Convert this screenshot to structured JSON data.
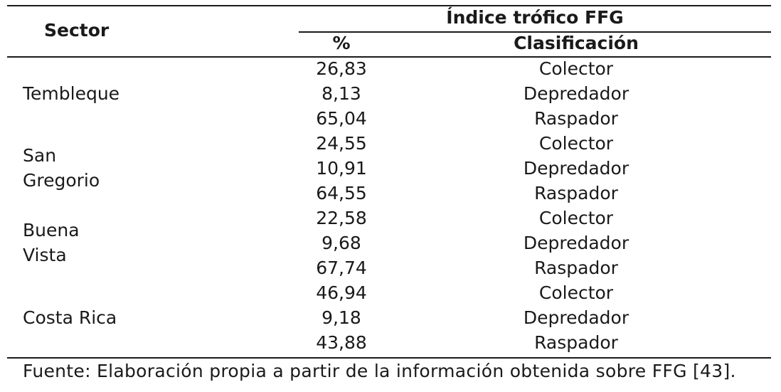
{
  "table": {
    "header": {
      "sector": "Sector",
      "group": "Índice trófico FFG",
      "percent": "%",
      "classification": "Clasificación"
    },
    "sectors": [
      {
        "name_lines": [
          "Tembleque"
        ],
        "rows": [
          {
            "percent": "26,83",
            "classification": "Colector"
          },
          {
            "percent": "8,13",
            "classification": "Depredador"
          },
          {
            "percent": "65,04",
            "classification": "Raspador"
          }
        ]
      },
      {
        "name_lines": [
          "San",
          "Gregorio"
        ],
        "rows": [
          {
            "percent": "24,55",
            "classification": "Colector"
          },
          {
            "percent": "10,91",
            "classification": "Depredador"
          },
          {
            "percent": "64,55",
            "classification": "Raspador"
          }
        ]
      },
      {
        "name_lines": [
          "Buena",
          "Vista"
        ],
        "rows": [
          {
            "percent": "22,58",
            "classification": "Colector"
          },
          {
            "percent": "9,68",
            "classification": "Depredador"
          },
          {
            "percent": "67,74",
            "classification": "Raspador"
          }
        ]
      },
      {
        "name_lines": [
          "Costa Rica"
        ],
        "rows": [
          {
            "percent": "46,94",
            "classification": "Colector"
          },
          {
            "percent": "9,18",
            "classification": "Depredador"
          },
          {
            "percent": "43,88",
            "classification": "Raspador"
          }
        ]
      }
    ]
  },
  "source_note": "Fuente: Elaboración propia a partir de la información obtenida sobre FFG [43]."
}
